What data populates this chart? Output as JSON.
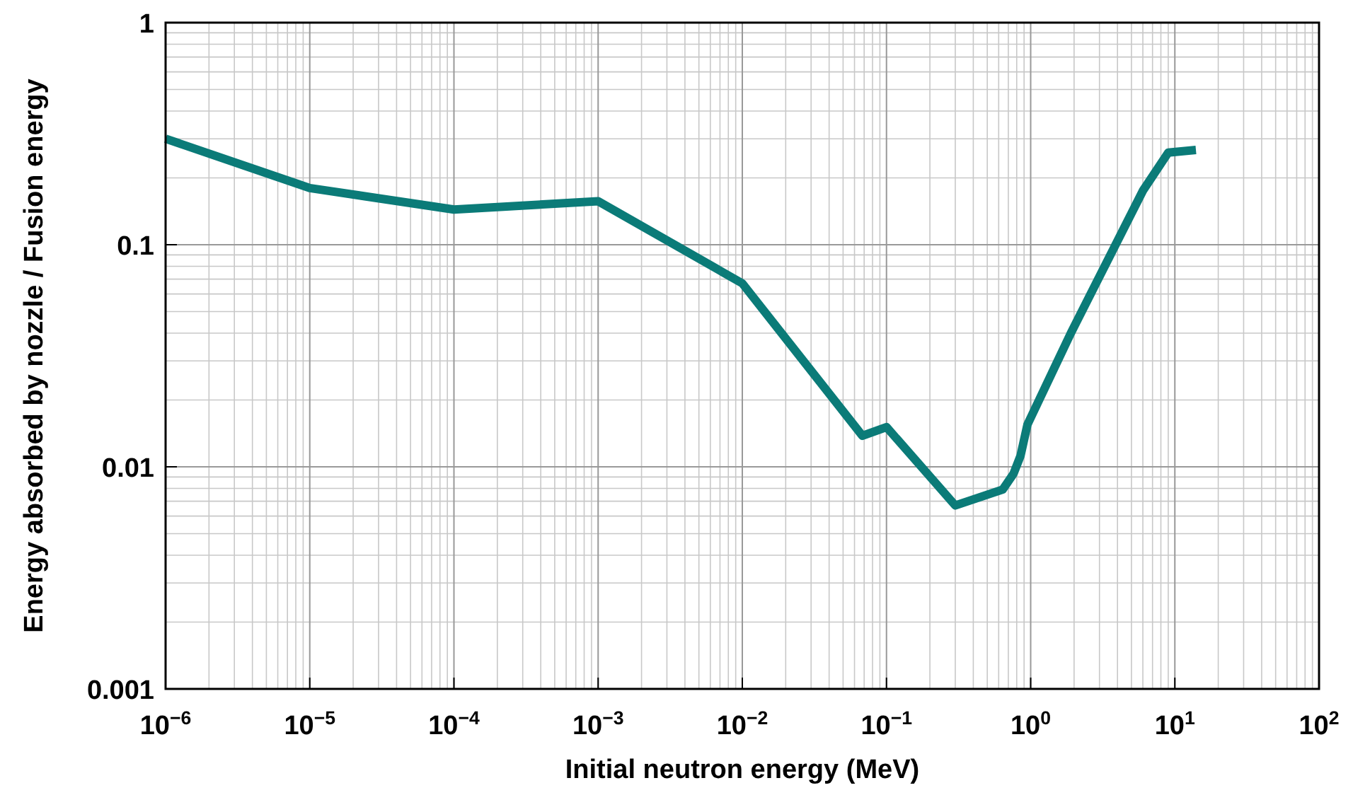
{
  "chart_data": {
    "type": "line",
    "xlabel": "Initial neutron energy (MeV)",
    "ylabel": "Energy absorbed by nozzle / Fusion energy",
    "log": "xy",
    "grid": true,
    "marker": "none",
    "line_style": "solid",
    "xlim": [
      1e-06,
      100
    ],
    "ylim": [
      0.001,
      1
    ],
    "xticks": [
      {
        "value": 1e-06,
        "label": "10$^{−6}$"
      },
      {
        "value": 1e-05,
        "label": "10$^{−5}$"
      },
      {
        "value": 0.0001,
        "label": "10$^{−4}$"
      },
      {
        "value": 0.001,
        "label": "10$^{−3}$"
      },
      {
        "value": 0.01,
        "label": "10$^{−2}$"
      },
      {
        "value": 0.1,
        "label": "10$^{−1}$"
      },
      {
        "value": 1,
        "label": "10$^{0}$"
      },
      {
        "value": 10,
        "label": "10$^{1}$"
      },
      {
        "value": 100,
        "label": "10$^{2}$"
      }
    ],
    "yticks": [
      0.001,
      0.01,
      0.1,
      1
    ],
    "series": [
      {
        "color": "#0b7b78",
        "x": [
          1e-06,
          1e-05,
          0.0001,
          0.001,
          0.01,
          0.068,
          0.1,
          0.3,
          0.64,
          0.76,
          0.85,
          0.95,
          1.9,
          6,
          9,
          14
        ],
        "values": [
          0.3,
          0.18,
          0.144,
          0.157,
          0.067,
          0.0138,
          0.0151,
          0.0067,
          0.0079,
          0.0093,
          0.0112,
          0.0155,
          0.04,
          0.175,
          0.26,
          0.267
        ]
      }
    ]
  }
}
